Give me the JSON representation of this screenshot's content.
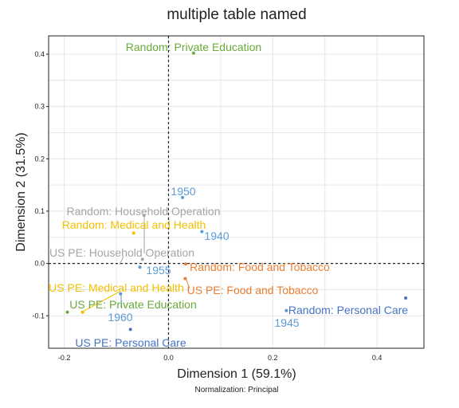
{
  "chart_data": {
    "type": "scatter",
    "title": "multiple table named",
    "xlabel": "Dimension 1 (59.1%)",
    "ylabel": "Dimension 2 (31.5%)",
    "note": "Normalization: Principal",
    "xlim": [
      -0.23,
      0.49
    ],
    "ylim": [
      -0.162,
      0.435
    ],
    "xticks": [
      -0.2,
      0.0,
      0.2,
      0.4
    ],
    "xtick_labels": [
      "-0.2",
      "0.0",
      "0.2",
      "0.4"
    ],
    "yticks": [
      -0.1,
      0.0,
      0.1,
      0.2,
      0.3,
      0.4
    ],
    "ytick_labels": [
      "-0.1",
      "0.0",
      "0.1",
      "0.2",
      "0.3",
      "0.4"
    ],
    "grid": true,
    "points": [
      {
        "label": "Random: Private Education",
        "x": 0.048,
        "y": 0.402,
        "color": "#6aaa3a"
      },
      {
        "label": "1950",
        "x": 0.027,
        "y": 0.126,
        "color": "#5b9bd5"
      },
      {
        "label": "1940",
        "x": 0.064,
        "y": 0.061,
        "color": "#5b9bd5"
      },
      {
        "label": "Random: Household Operation",
        "x": -0.047,
        "y": 0.092,
        "color": "#a5a5a5"
      },
      {
        "label": "Random: Medical and Health",
        "x": -0.067,
        "y": 0.058,
        "color": "#f2c000"
      },
      {
        "label": "US PE: Household Operation",
        "x": -0.05,
        "y": 0.008,
        "color": "#a5a5a5"
      },
      {
        "label": "1955",
        "x": -0.055,
        "y": -0.007,
        "color": "#5b9bd5"
      },
      {
        "label": "Random: Food and Tobacco",
        "x": 0.033,
        "y": -0.001,
        "color": "#ed7d31"
      },
      {
        "label": "US PE: Food and Tobacco",
        "x": 0.032,
        "y": -0.029,
        "color": "#ed7d31"
      },
      {
        "label": "US PE: Medical and Health",
        "x": -0.165,
        "y": -0.093,
        "color": "#f2c000"
      },
      {
        "label": "US PE: Private Education",
        "x": -0.194,
        "y": -0.093,
        "color": "#6aaa3a"
      },
      {
        "label": "1960",
        "x": -0.092,
        "y": -0.058,
        "color": "#5b9bd5"
      },
      {
        "label": "US PE: Personal Care",
        "x": -0.073,
        "y": -0.126,
        "color": "#4472c4"
      },
      {
        "label": "Random: Personal Care",
        "x": 0.455,
        "y": -0.066,
        "color": "#4472c4"
      },
      {
        "label": "1945",
        "x": 0.226,
        "y": -0.09,
        "color": "#5b9bd5"
      }
    ]
  }
}
